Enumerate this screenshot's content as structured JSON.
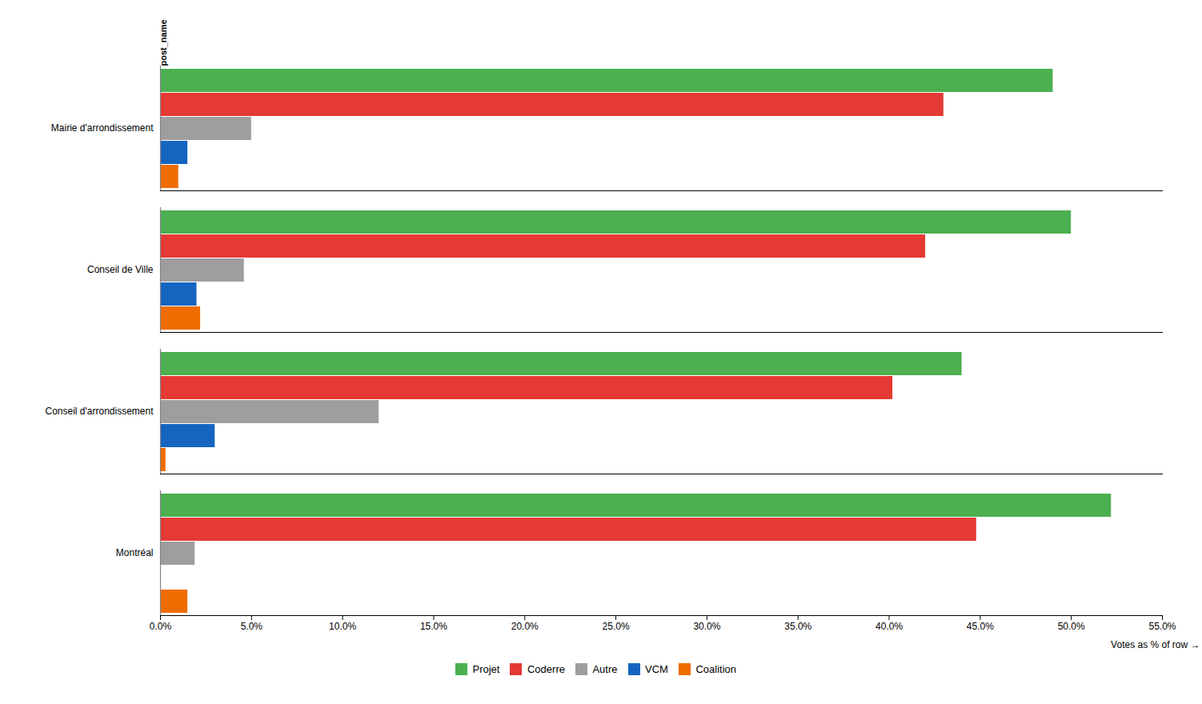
{
  "chart_data": {
    "type": "bar",
    "orientation": "horizontal",
    "categories": [
      "Mairie d'arrondissement",
      "Conseil de Ville",
      "Conseil d'arrondissement",
      "Montréal"
    ],
    "series": [
      {
        "name": "Projet",
        "color": "#4caf50",
        "values": [
          0.49,
          0.5,
          0.44,
          0.522
        ]
      },
      {
        "name": "Coderre",
        "color": "#e53935",
        "values": [
          0.43,
          0.42,
          0.402,
          0.448
        ]
      },
      {
        "name": "Autre",
        "color": "#9e9e9e",
        "values": [
          0.05,
          0.046,
          0.12,
          0.019
        ]
      },
      {
        "name": "VCM",
        "color": "#1565c0",
        "values": [
          0.015,
          0.02,
          0.03,
          0.0
        ]
      },
      {
        "name": "Coalition",
        "color": "#ef6c00",
        "values": [
          0.01,
          0.022,
          0.003,
          0.015
        ]
      }
    ],
    "xlabel": "Votes as % of row",
    "xlim": [
      0,
      0.55
    ],
    "xticks": [
      {
        "value": 0.0,
        "label": "0.0%"
      },
      {
        "value": 0.05,
        "label": "5.0%"
      },
      {
        "value": 0.1,
        "label": "10.0%"
      },
      {
        "value": 0.15,
        "label": "15.0%"
      },
      {
        "value": 0.2,
        "label": "20.0%"
      },
      {
        "value": 0.25,
        "label": "25.0%"
      },
      {
        "value": 0.3,
        "label": "30.0%"
      },
      {
        "value": 0.35,
        "label": "35.0%"
      },
      {
        "value": 0.4,
        "label": "40.0%"
      },
      {
        "value": 0.45,
        "label": "45.0%"
      },
      {
        "value": 0.5,
        "label": "50.0%"
      },
      {
        "value": 0.55,
        "label": "55.0%"
      }
    ],
    "annotations": [
      {
        "text": "post_name"
      }
    ],
    "grid": false,
    "legend": "bottom"
  }
}
